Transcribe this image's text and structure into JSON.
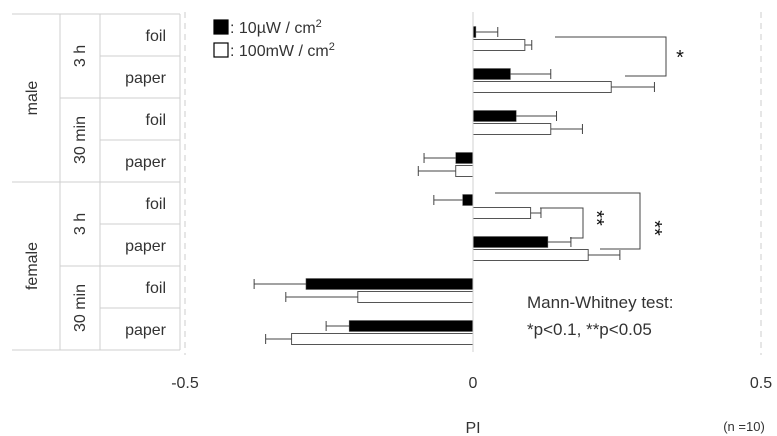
{
  "chart_data": {
    "type": "bar",
    "orientation": "horizontal",
    "xlabel": "PI",
    "xlim": [
      -0.5,
      0.5
    ],
    "x_ticks": [
      "-0.5",
      "0",
      "0.5"
    ],
    "grid": "dashed vertical lines at -0.5 and 0.5",
    "legend_placement": "top-left",
    "groups": [
      {
        "sex": "male",
        "time": "3 h",
        "substrate": "foil",
        "values": {
          "10uW": 0.005,
          "100mW": 0.09
        },
        "errors": {
          "10uW": 0.038,
          "100mW": 0.012
        }
      },
      {
        "sex": "male",
        "time": "3 h",
        "substrate": "paper",
        "values": {
          "10uW": 0.065,
          "100mW": 0.24
        },
        "errors": {
          "10uW": 0.07,
          "100mW": 0.075
        }
      },
      {
        "sex": "male",
        "time": "30 min",
        "substrate": "foil",
        "values": {
          "10uW": 0.075,
          "100mW": 0.135
        },
        "errors": {
          "10uW": 0.07,
          "100mW": 0.055
        }
      },
      {
        "sex": "male",
        "time": "30 min",
        "substrate": "paper",
        "values": {
          "10uW": -0.03,
          "100mW": -0.03
        },
        "errors": {
          "10uW": 0.055,
          "100mW": 0.065
        }
      },
      {
        "sex": "female",
        "time": "3 h",
        "substrate": "foil",
        "values": {
          "10uW": -0.018,
          "100mW": 0.1
        },
        "errors": {
          "10uW": 0.05,
          "100mW": 0.018
        }
      },
      {
        "sex": "female",
        "time": "3 h",
        "substrate": "paper",
        "values": {
          "10uW": 0.13,
          "100mW": 0.2
        },
        "errors": {
          "10uW": 0.04,
          "100mW": 0.055
        }
      },
      {
        "sex": "female",
        "time": "30 min",
        "substrate": "foil",
        "values": {
          "10uW": -0.29,
          "100mW": -0.2
        },
        "errors": {
          "10uW": 0.09,
          "100mW": 0.125
        }
      },
      {
        "sex": "female",
        "time": "30 min",
        "substrate": "paper",
        "values": {
          "10uW": -0.215,
          "100mW": -0.315
        },
        "errors": {
          "10uW": 0.04,
          "100mW": 0.045
        }
      }
    ],
    "series": [
      {
        "key": "10uW",
        "label_prefix": ": 10µW / cm",
        "label_sup": "2",
        "color": "#000000"
      },
      {
        "key": "100mW",
        "label_prefix": ": 100mW / cm",
        "label_sup": "2",
        "color": "#ffffff"
      }
    ],
    "significance": [
      {
        "text": "*"
      },
      {
        "text": "**"
      },
      {
        "text": "**"
      }
    ],
    "annotation_lines": [
      "Mann-Whitney test:",
      "*p<0.1, **p<0.05"
    ],
    "note": "(n =10)"
  }
}
